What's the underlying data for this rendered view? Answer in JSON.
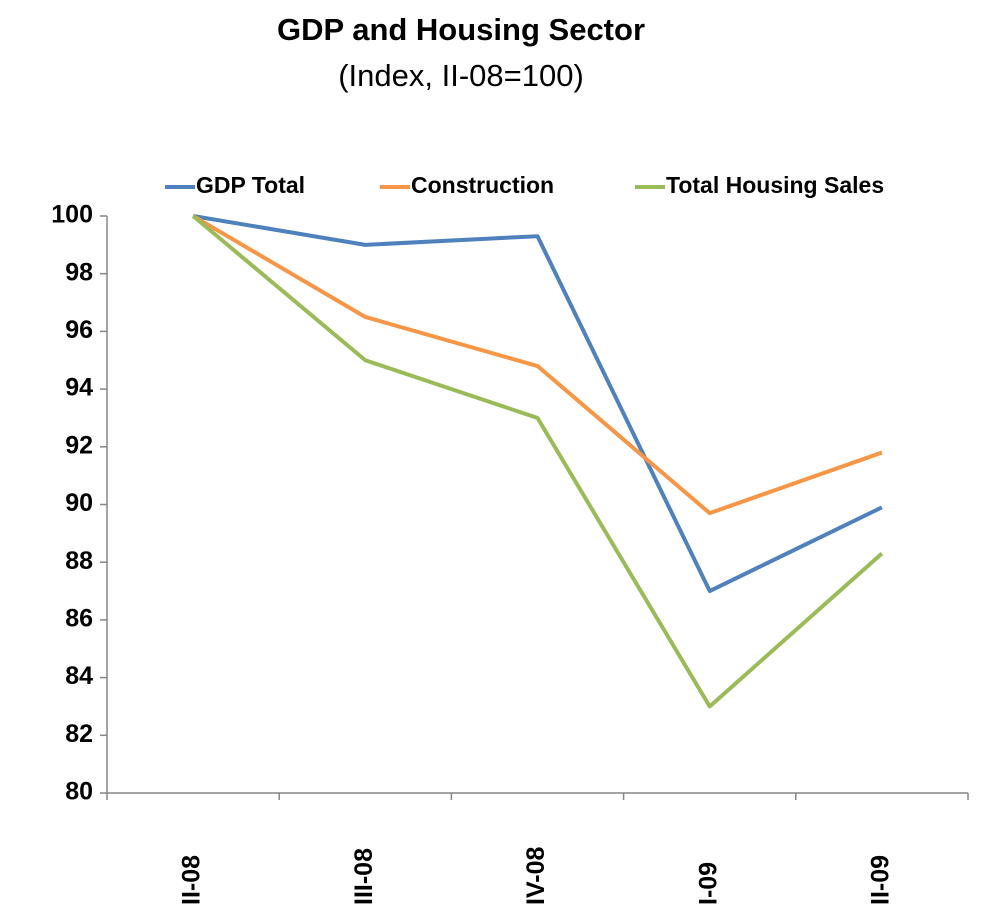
{
  "chart_data": {
    "type": "line",
    "title": "GDP and Housing Sector",
    "subtitle": "(Index, II-08=100)",
    "categories": [
      "II-08",
      "III-08",
      "IV-08",
      "I-09",
      "II-09"
    ],
    "series": [
      {
        "name": "GDP Total",
        "color": "#4f81bd",
        "values": [
          100,
          99.0,
          99.3,
          87.0,
          89.9
        ]
      },
      {
        "name": "Construction",
        "color": "#f79646",
        "values": [
          100,
          96.5,
          94.8,
          89.7,
          91.8
        ]
      },
      {
        "name": "Total Housing Sales",
        "color": "#9bbb59",
        "values": [
          100,
          95.0,
          93.0,
          83.0,
          88.3
        ]
      }
    ],
    "ylim": [
      80,
      100
    ],
    "yticks": [
      80,
      82,
      84,
      86,
      88,
      90,
      92,
      94,
      96,
      98,
      100
    ],
    "grid": false,
    "legend": "top"
  }
}
